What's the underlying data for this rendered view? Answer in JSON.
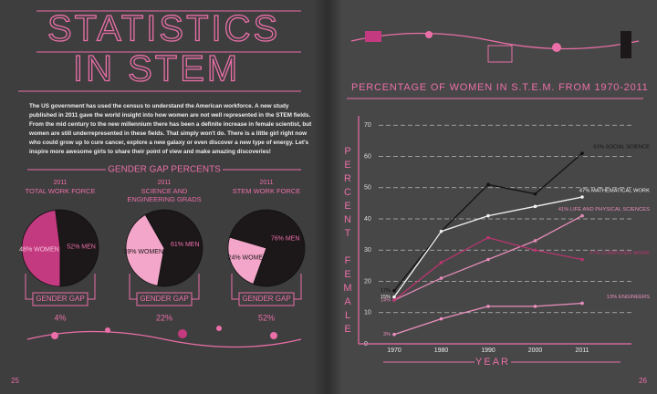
{
  "header": {
    "title_lines": [
      "STATISTICS",
      "IN STEM"
    ]
  },
  "intro": "The US government has used the census to understand the American workforce. A new study published in 2011 gave the world insight into how women are not well represented in the STEM fields. From the mid century to the new millennium there has been a definite increase in female scientist, but women are still underrepresented in these fields. That simply won't do. There is a little girl right now who could grow up to cure cancer, explore a new galaxy or even discover a new type of energy. Let's inspire more awesome girls to share their point of view and make amazing discoveries!",
  "gender_gap": {
    "heading": "GENDER GAP PERCENTS",
    "gap_label": "GENDER GAP"
  },
  "page_numbers": [
    "25",
    "26"
  ],
  "chart_data": [
    {
      "type": "pie",
      "year": "2011",
      "title_lines": [
        "TOTAL WORK FORCE"
      ],
      "values": [
        48,
        52
      ],
      "value_labels": [
        "48% WOMEN",
        "52% MEN"
      ],
      "colors": [
        "#c43a80",
        "#1c1719"
      ],
      "gap": "4%"
    },
    {
      "type": "pie",
      "year": "2011",
      "title_lines": [
        "SCIENCE AND",
        "ENGINEERING GRADS"
      ],
      "values": [
        39,
        61
      ],
      "value_labels": [
        "39% WOMEN",
        "61% MEN"
      ],
      "colors": [
        "#f3a6c9",
        "#1c1719"
      ],
      "gap": "22%"
    },
    {
      "type": "pie",
      "year": "2011",
      "title_lines": [
        "STEM WORK FORCE"
      ],
      "values": [
        24,
        76
      ],
      "value_labels": [
        "24% WOMEN",
        "76% MEN"
      ],
      "colors": [
        "#f3a6c9",
        "#1c1719"
      ],
      "gap": "52%"
    },
    {
      "type": "line",
      "title": "PERCENTAGE OF WOMEN IN S.T.E.M. FROM 1970-2011",
      "x_label": "YEAR",
      "y_label": "PERCENT FEMALE",
      "categories": [
        1970,
        1980,
        1990,
        2000,
        2011
      ],
      "ylim": [
        0,
        73
      ],
      "yticks": [
        0,
        10,
        20,
        30,
        40,
        50,
        60,
        70
      ],
      "grid": true,
      "series": [
        {
          "name": "61% SOCIAL SCIENCE",
          "color": "#141114",
          "values": [
            17,
            36,
            51,
            48,
            61
          ],
          "value_labels": [
            "17%",
            null,
            null,
            null,
            null
          ]
        },
        {
          "name": "47% MATHEMATICAL WORK",
          "color": "#f2f2f2",
          "values": [
            15,
            36,
            41,
            44,
            47
          ],
          "value_labels": [
            "15%",
            null,
            null,
            null,
            null
          ]
        },
        {
          "name": "41% LIFE AND PHYSICAL SCIENCES",
          "color": "#e58bb8",
          "values": [
            14,
            21,
            27,
            33,
            41
          ],
          "value_labels": [
            "14%",
            null,
            null,
            null,
            null
          ]
        },
        {
          "name": "27% COMPUTER WORK",
          "color": "#b8356f",
          "values": [
            14,
            26,
            34,
            30,
            27
          ],
          "value_labels": [
            null,
            null,
            null,
            null,
            null
          ]
        },
        {
          "name": "13% ENGINEERS",
          "color": "#ec8fbe",
          "values": [
            3,
            8,
            12,
            12,
            13
          ],
          "value_labels": [
            "3%",
            null,
            null,
            null,
            null
          ]
        }
      ]
    }
  ]
}
